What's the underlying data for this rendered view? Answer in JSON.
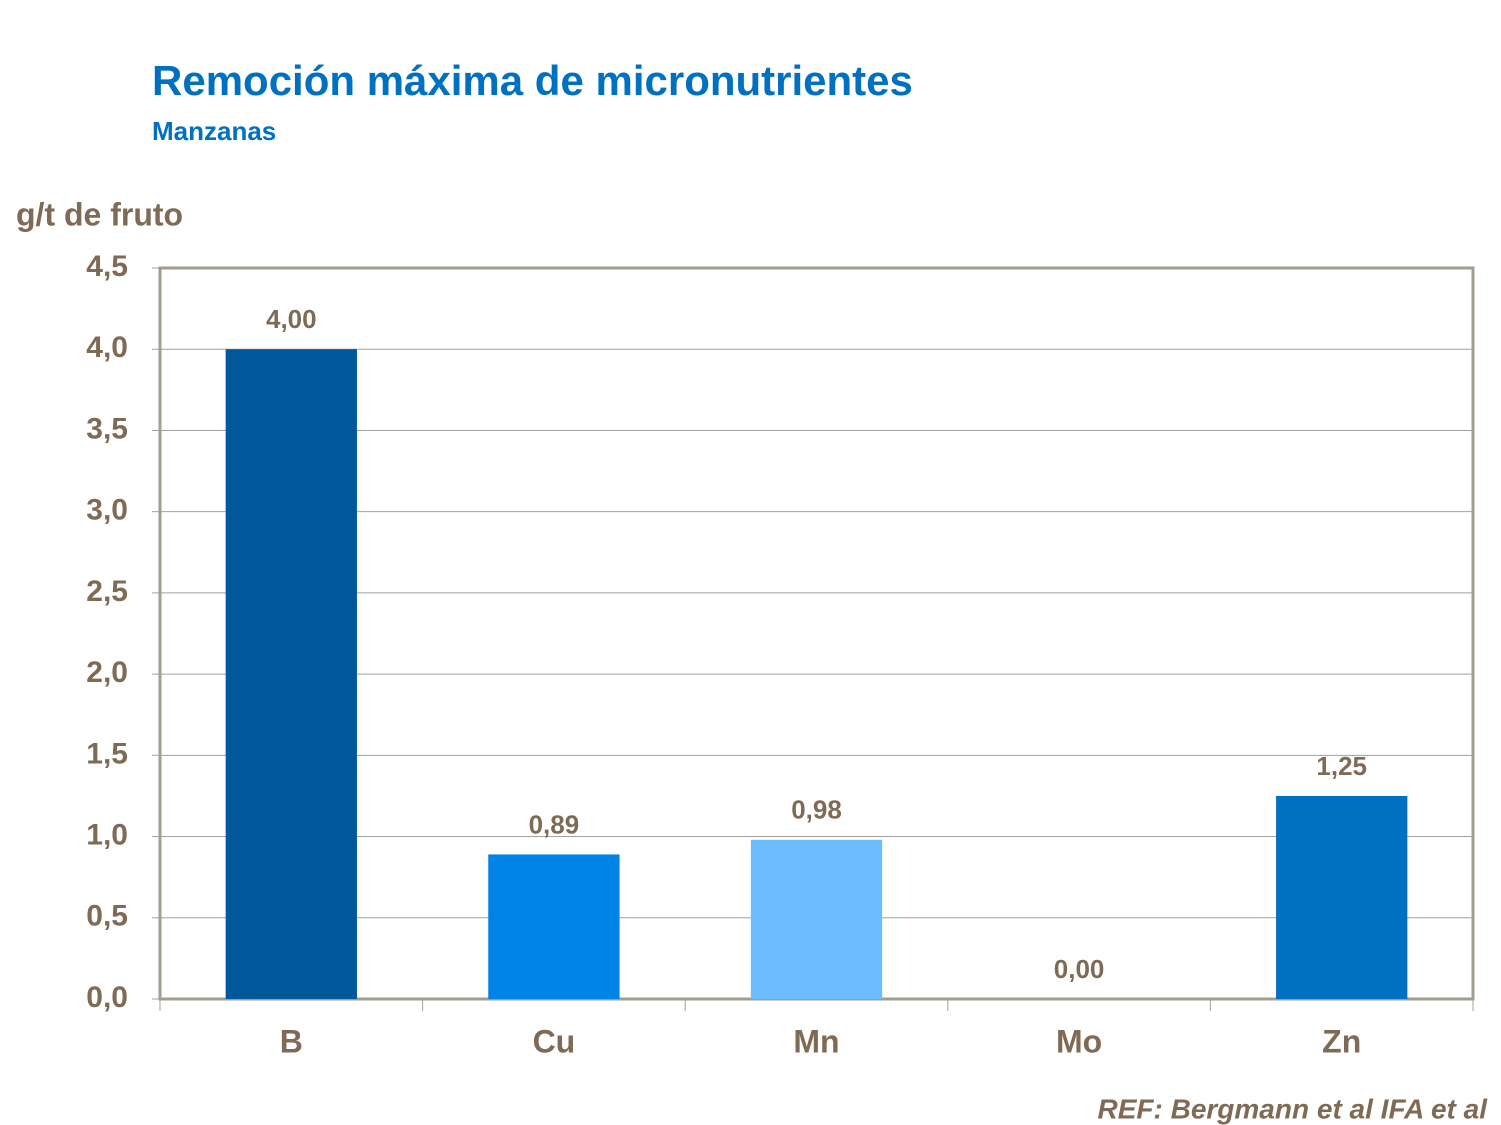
{
  "chart_data": {
    "type": "bar",
    "title": "Remoción máxima de micronutrientes",
    "subtitle": "Manzanas",
    "y_label": "g/t de fruto",
    "note": "REF: Bergmann et al IFA et al",
    "categories": [
      "B",
      "Cu",
      "Mn",
      "Mo",
      "Zn"
    ],
    "values": [
      4.0,
      0.89,
      0.98,
      0.0,
      1.25
    ],
    "value_labels": [
      "4,00",
      "0,89",
      "0,98",
      "0,00",
      "1,25"
    ],
    "colors": [
      "#00579a",
      "#0083e6",
      "#6bbdff",
      "#4a90c8",
      "#0070c0"
    ],
    "ylim": [
      0,
      4.5
    ],
    "yticks": [
      {
        "value": 0,
        "label": "0,0"
      },
      {
        "value": 0.5,
        "label": "0,5"
      },
      {
        "value": 1,
        "label": "1,0"
      },
      {
        "value": 1.5,
        "label": "1,5"
      },
      {
        "value": 2,
        "label": "2,0"
      },
      {
        "value": 2.5,
        "label": "2,5"
      },
      {
        "value": 3,
        "label": "3,0"
      },
      {
        "value": 3.5,
        "label": "3,5"
      },
      {
        "value": 4,
        "label": "4,0"
      },
      {
        "value": 4.5,
        "label": "4,5"
      }
    ],
    "grid": true
  }
}
